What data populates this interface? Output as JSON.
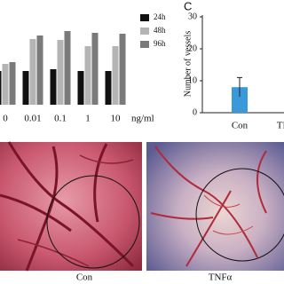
{
  "chart_data": [
    {
      "type": "bar",
      "categories": [
        "0",
        "0.01",
        "0.1",
        "1",
        "10"
      ],
      "x_unit": "ng/ml",
      "series": [
        {
          "name": "24h",
          "color": "#111111",
          "values": [
            38,
            38,
            40,
            38,
            38
          ]
        },
        {
          "name": "48h",
          "color": "#b4b4b4",
          "values": [
            46,
            74,
            73,
            66,
            66
          ]
        },
        {
          "name": "96h",
          "color": "#7a7a7a",
          "values": [
            48,
            78,
            83,
            81,
            80
          ]
        }
      ],
      "ylim": [
        0,
        100
      ]
    },
    {
      "type": "bar",
      "panel_label": "C",
      "y_label": "Number of vessels",
      "categories": [
        "Con",
        "TNFα"
      ],
      "values": [
        8,
        null
      ],
      "errors": [
        3,
        null
      ],
      "color": "#3a9ad9",
      "ylim": [
        0,
        30
      ],
      "yticks": [
        0,
        10,
        20,
        30
      ]
    }
  ],
  "images": [
    {
      "caption": "Con"
    },
    {
      "caption": "TNFα"
    }
  ]
}
